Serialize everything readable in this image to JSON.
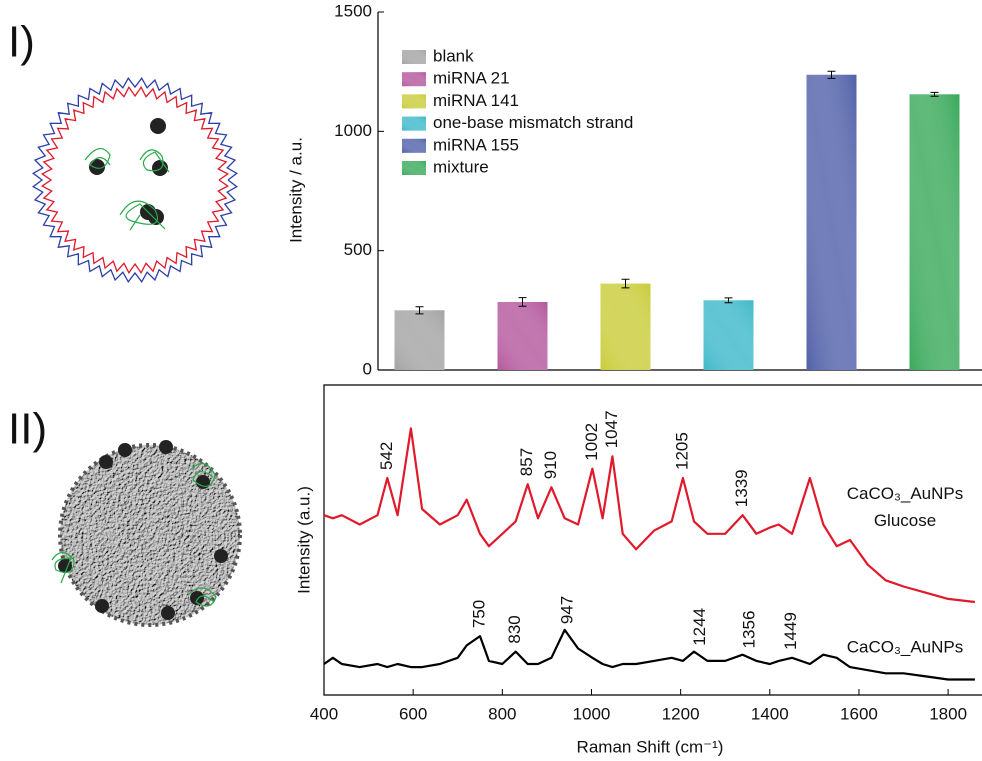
{
  "chart_data": [
    {
      "type": "bar",
      "panel_label": "I)",
      "ylabel": "Intensity / a.u.",
      "categories": [
        "blank",
        "miRNA 21",
        "miRNA 141",
        "one-base mismatch strand",
        "miRNA 155",
        "mixture"
      ],
      "values": [
        250,
        285,
        362,
        292,
        1237,
        1155
      ],
      "errors": [
        15,
        18,
        18,
        10,
        15,
        8
      ],
      "colors": [
        "#a3a3a3",
        "#b4579c",
        "#c9cc38",
        "#3eb8c9",
        "#5161a9",
        "#3aa95b"
      ],
      "ylim": [
        0,
        1500
      ],
      "yticks": [
        0,
        500,
        1000,
        1500
      ],
      "legend": "upper left"
    },
    {
      "type": "line",
      "panel_label": "II)",
      "xlabel": "Raman Shift (cm⁻¹)",
      "ylabel": "Intensity (a.u.)",
      "x": [
        400,
        420,
        440,
        480,
        520,
        542,
        565,
        595,
        620,
        660,
        700,
        720,
        750,
        770,
        800,
        830,
        857,
        880,
        910,
        940,
        970,
        1002,
        1025,
        1047,
        1070,
        1100,
        1140,
        1180,
        1205,
        1230,
        1260,
        1300,
        1339,
        1370,
        1400,
        1420,
        1450,
        1490,
        1520,
        1550,
        1580,
        1620,
        1660,
        1700,
        1750,
        1800,
        1860
      ],
      "series": [
        {
          "name": "CaCO₃_AuNPs Glucose",
          "color": "#e0192b",
          "values": [
            58,
            57,
            58,
            55,
            58,
            70,
            58,
            86,
            60,
            55,
            58,
            63,
            52,
            48,
            52,
            56,
            68,
            57,
            67,
            57,
            55,
            73,
            57,
            77,
            52,
            47,
            53,
            56,
            70,
            56,
            52,
            52,
            58,
            52,
            54,
            55,
            52,
            70,
            55,
            48,
            50,
            42,
            37,
            35,
            33,
            31,
            30
          ],
          "peaks": [
            542,
            857,
            910,
            1002,
            1047,
            1205,
            1339
          ]
        },
        {
          "name": "CaCO₃_AuNPs",
          "color": "#000000",
          "values": [
            10,
            12,
            10,
            9,
            10,
            9,
            10,
            9,
            9,
            10,
            12,
            16,
            19,
            11,
            10,
            14,
            10,
            10,
            12,
            21,
            15,
            12,
            10,
            9,
            10,
            10,
            11,
            12,
            11,
            14,
            11,
            11,
            13,
            11,
            10,
            11,
            12,
            10,
            13,
            12,
            9,
            8,
            7,
            7,
            6,
            5,
            5
          ],
          "peaks": [
            750,
            830,
            947,
            1244,
            1356,
            1449
          ]
        }
      ],
      "xlim": [
        400,
        1876
      ],
      "xticks": [
        400,
        600,
        800,
        1000,
        1200,
        1400,
        1600,
        1800
      ],
      "ylim": [
        0,
        100
      ]
    }
  ]
}
